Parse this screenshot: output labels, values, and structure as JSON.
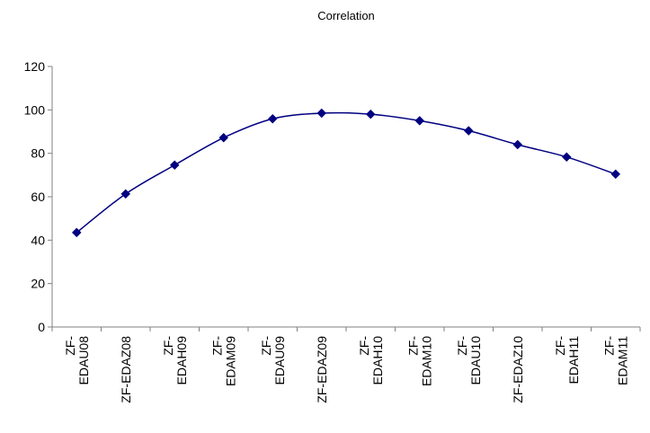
{
  "colors": {
    "series": "#000080",
    "axis": "#808080",
    "text": "#000000"
  },
  "chart_data": {
    "type": "line",
    "title": "Correlation",
    "xlabel": "",
    "ylabel": "",
    "ylim": [
      0,
      120
    ],
    "yticks": [
      0,
      20,
      40,
      60,
      80,
      100,
      120
    ],
    "grid": false,
    "legend": "none",
    "marker": "diamond",
    "smooth": true,
    "categories": [
      {
        "lines": [
          "ZF-",
          "EDAU08"
        ]
      },
      {
        "lines": [
          "ZF-EDAZ08"
        ]
      },
      {
        "lines": [
          "ZF-",
          "EDAH09"
        ]
      },
      {
        "lines": [
          "ZF-",
          "EDAM09"
        ]
      },
      {
        "lines": [
          "ZF-",
          "EDAU09"
        ]
      },
      {
        "lines": [
          "ZF-EDAZ09"
        ]
      },
      {
        "lines": [
          "ZF-",
          "EDAH10"
        ]
      },
      {
        "lines": [
          "ZF-",
          "EDAM10"
        ]
      },
      {
        "lines": [
          "ZF-",
          "EDAU10"
        ]
      },
      {
        "lines": [
          "ZF-EDAZ10"
        ]
      },
      {
        "lines": [
          "ZF-",
          "EDAH11"
        ]
      },
      {
        "lines": [
          "ZF-",
          "EDAM11"
        ]
      }
    ],
    "series": [
      {
        "values": [
          43.5,
          61.3,
          74.6,
          87.2,
          95.9,
          98.5,
          98.0,
          95.0,
          90.4,
          84.0,
          78.3,
          70.4
        ]
      }
    ]
  }
}
